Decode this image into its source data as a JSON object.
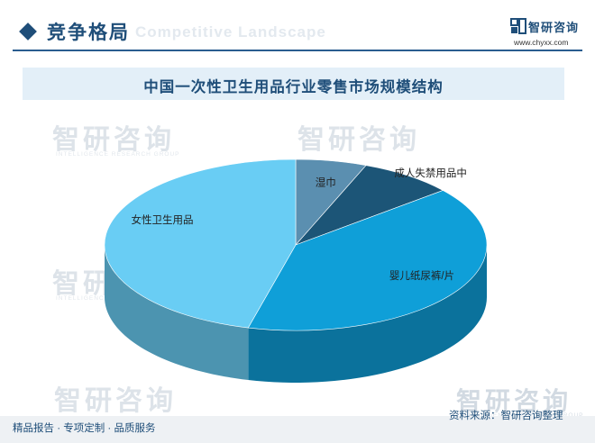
{
  "header": {
    "section_title": "竞争格局",
    "section_subtitle": "Competitive Landscape",
    "brand_name": "智研咨询",
    "brand_url": "www.chyxx.com"
  },
  "watermark": {
    "name": "智研咨询",
    "sub": "INTELLIGENCE RESEARCH GROUP"
  },
  "chart_data": {
    "type": "pie",
    "title": "中国一次性卫生用品行业零售市场规模结构",
    "categories": [
      "湿巾",
      "成人失禁用品中",
      "婴儿纸尿裤/片",
      "女性卫生用品"
    ],
    "values": [
      6,
      8,
      40,
      46
    ],
    "colors": [
      "#5b8fb0",
      "#1c5577",
      "#0f9fd8",
      "#69cdf4"
    ],
    "label_position": "outside"
  },
  "footer": {
    "left": "精品报告 · 专项定制 · 品质服务",
    "source": "资料来源：智研咨询整理"
  }
}
